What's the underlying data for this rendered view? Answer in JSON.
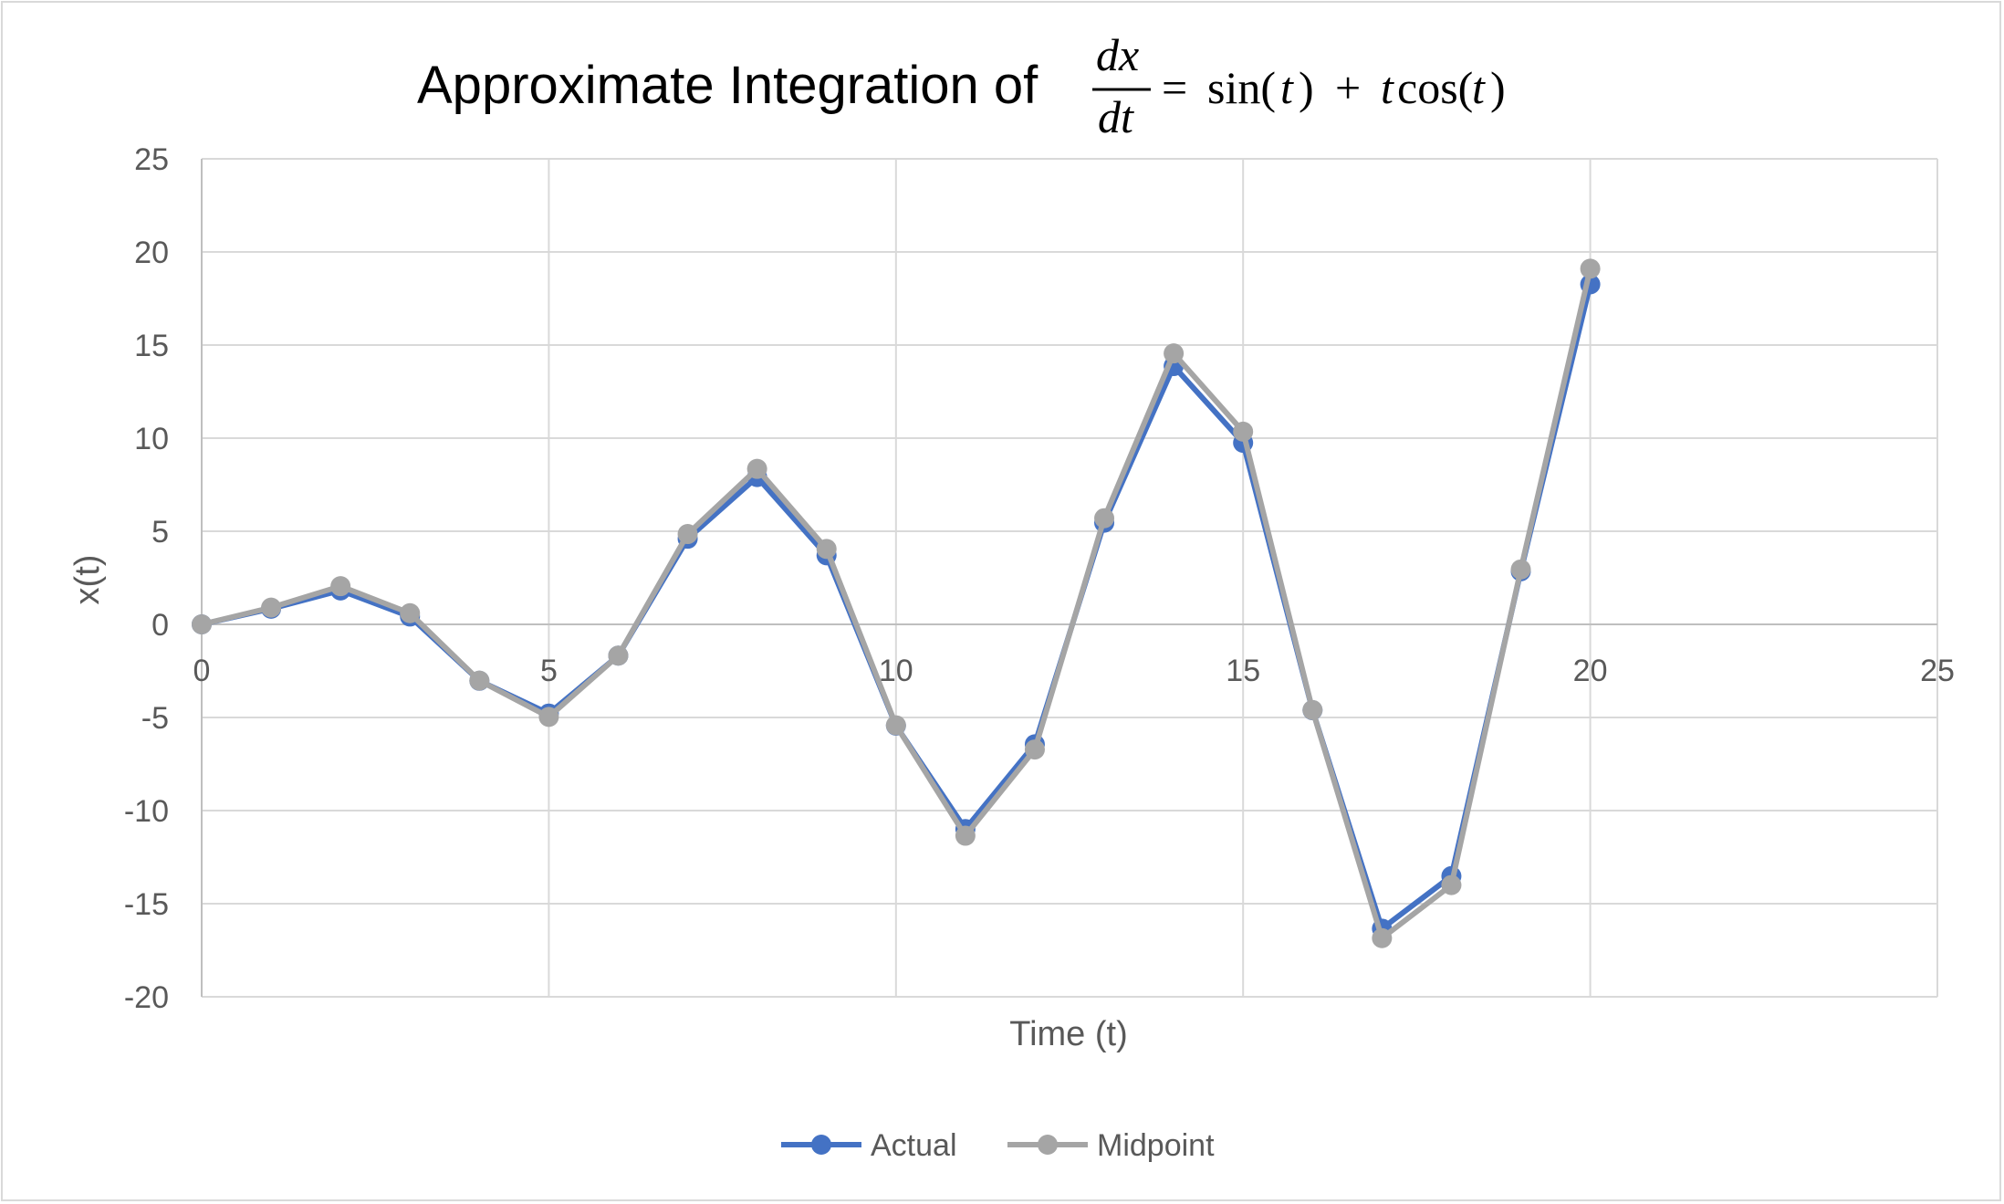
{
  "chart_data": {
    "type": "line",
    "title": {
      "text": "Approximate Integration of",
      "equation": {
        "numerator": "dx",
        "denominator": "dt",
        "equals": "=",
        "rhs_sin": "sin(",
        "rhs_t": "t",
        "rhs_close": ")",
        "rhs_plus": "+",
        "rhs_cos": "cos(",
        "rhs_end": ")"
      }
    },
    "xlabel": "Time (t)",
    "ylabel": "x(t)",
    "xlim": [
      0,
      25
    ],
    "ylim": [
      -20,
      25
    ],
    "x_ticks": [
      0,
      5,
      10,
      15,
      20,
      25
    ],
    "y_ticks": [
      25,
      20,
      15,
      10,
      5,
      0,
      -5,
      -10,
      -15,
      -20
    ],
    "grid": true,
    "legend_position": "bottom",
    "x": [
      0,
      1,
      2,
      3,
      4,
      5,
      6,
      7,
      8,
      9,
      10,
      11,
      12,
      13,
      14,
      15,
      16,
      17,
      18,
      19,
      20
    ],
    "series": [
      {
        "name": "Actual",
        "color": "#4472c4",
        "values": [
          0,
          0.84,
          1.82,
          0.42,
          -3.03,
          -4.79,
          -1.68,
          4.6,
          7.91,
          3.71,
          -5.44,
          -10.99,
          -6.44,
          5.46,
          13.87,
          9.75,
          -4.61,
          -16.34,
          -13.52,
          2.85,
          18.26
        ]
      },
      {
        "name": "Midpoint",
        "color": "#a5a5a5",
        "values": [
          0,
          0.9,
          2.05,
          0.6,
          -3.02,
          -4.97,
          -1.68,
          4.85,
          8.35,
          4.05,
          -5.42,
          -11.35,
          -6.72,
          5.7,
          14.55,
          10.35,
          -4.6,
          -16.85,
          -14.0,
          2.95,
          19.1
        ]
      }
    ]
  }
}
